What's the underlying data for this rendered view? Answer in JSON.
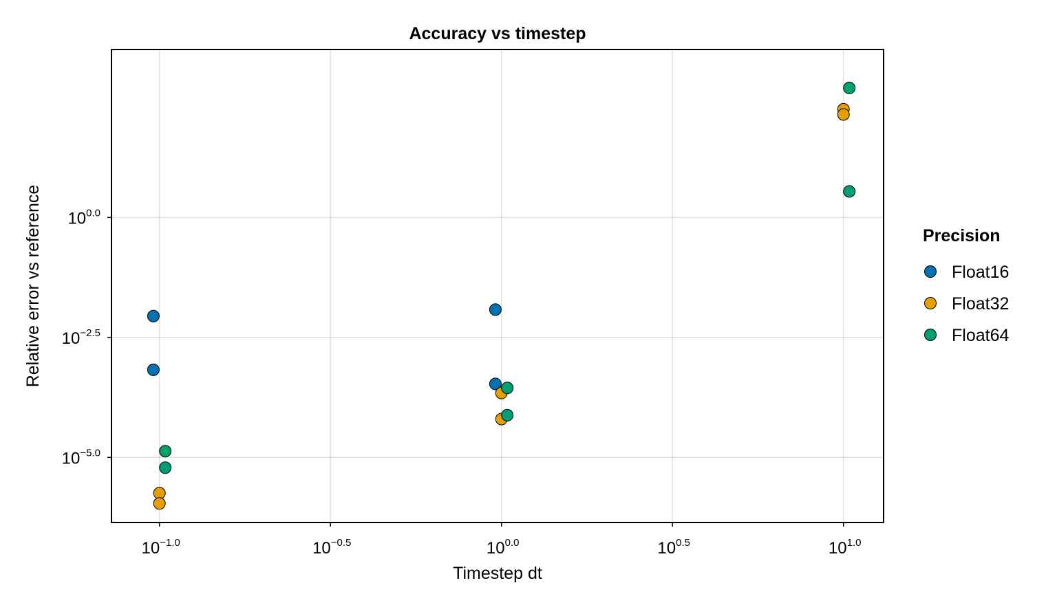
{
  "chart_data": {
    "type": "scatter",
    "title": "Accuracy vs timestep",
    "xlabel": "Timestep dt",
    "ylabel": "Relative error vs reference",
    "xscale": "log10",
    "yscale": "log10",
    "xlim": [
      0.0724,
      13.1
    ],
    "ylim": [
      4.4e-07,
      3162
    ],
    "x_ticks": [
      {
        "value": 0.1,
        "base": "10",
        "exp": "−1.0"
      },
      {
        "value": 0.3162,
        "base": "10",
        "exp": "−0.5"
      },
      {
        "value": 1,
        "base": "10",
        "exp": "0.0"
      },
      {
        "value": 3.162,
        "base": "10",
        "exp": "0.5"
      },
      {
        "value": 10,
        "base": "10",
        "exp": "1.0"
      }
    ],
    "y_ticks": [
      {
        "value": 1,
        "base": "10",
        "exp": "0.0"
      },
      {
        "value": 0.003162,
        "base": "10",
        "exp": "−2.5"
      },
      {
        "value": 1e-05,
        "base": "10",
        "exp": "−5.0"
      }
    ],
    "grid": true,
    "legend": {
      "title": "Precision",
      "placement": "right"
    },
    "series": [
      {
        "name": "Float16",
        "color": "#0072b2",
        "points": [
          {
            "x": 0.096,
            "y": 0.0088
          },
          {
            "x": 0.096,
            "y": 0.00067
          },
          {
            "x": 0.96,
            "y": 0.012
          },
          {
            "x": 0.96,
            "y": 0.00034
          }
        ]
      },
      {
        "name": "Float32",
        "color": "#e69f00",
        "points": [
          {
            "x": 0.1,
            "y": 1.8e-06
          },
          {
            "x": 0.1,
            "y": 1.1e-06
          },
          {
            "x": 1.0,
            "y": 0.00022
          },
          {
            "x": 1.0,
            "y": 6.3e-05
          },
          {
            "x": 10.0,
            "y": 180
          },
          {
            "x": 10.0,
            "y": 140
          }
        ]
      },
      {
        "name": "Float64",
        "color": "#009e73",
        "points": [
          {
            "x": 0.104,
            "y": 1.35e-05
          },
          {
            "x": 0.104,
            "y": 6.1e-06
          },
          {
            "x": 1.04,
            "y": 0.00028
          },
          {
            "x": 1.04,
            "y": 7.6e-05
          },
          {
            "x": 10.4,
            "y": 500
          },
          {
            "x": 10.4,
            "y": 3.5
          }
        ]
      }
    ]
  }
}
